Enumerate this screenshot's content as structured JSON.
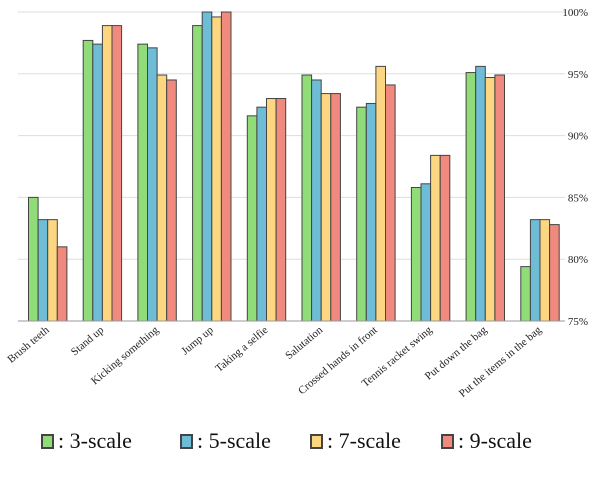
{
  "chart_data": {
    "type": "bar",
    "categories": [
      "Brush teeth",
      "Stand up",
      "Kicking something",
      "Jump up",
      "Taking a selfie",
      "Salutation",
      "Crossed hands in front",
      "Tennis racket swing",
      "Put down the bag",
      "Put the items in the bag"
    ],
    "series": [
      {
        "name": ": 3-scale",
        "color": "#8fdc78",
        "values": [
          85.0,
          97.7,
          97.4,
          98.9,
          91.6,
          94.9,
          92.3,
          85.8,
          95.1,
          79.4
        ]
      },
      {
        "name": ": 5-scale",
        "color": "#6fbcd6",
        "values": [
          83.2,
          97.4,
          97.1,
          100.0,
          92.3,
          94.5,
          92.6,
          86.1,
          95.6,
          83.2
        ]
      },
      {
        "name": ": 7-scale",
        "color": "#fcd680",
        "values": [
          83.2,
          98.9,
          94.9,
          99.6,
          93.0,
          93.4,
          95.6,
          88.4,
          94.7,
          83.2
        ]
      },
      {
        "name": ": 9-scale",
        "color": "#f08a7e",
        "values": [
          81.0,
          98.9,
          94.5,
          100.0,
          93.0,
          93.4,
          94.1,
          88.4,
          94.9,
          82.8
        ]
      }
    ],
    "ylim": [
      75,
      100
    ],
    "yticks": [
      "75%",
      "80%",
      "85%",
      "90%",
      "95%",
      "100%"
    ],
    "ytick_values": [
      75,
      80,
      85,
      90,
      95,
      100
    ],
    "grid": true,
    "legend_position": "bottom"
  }
}
